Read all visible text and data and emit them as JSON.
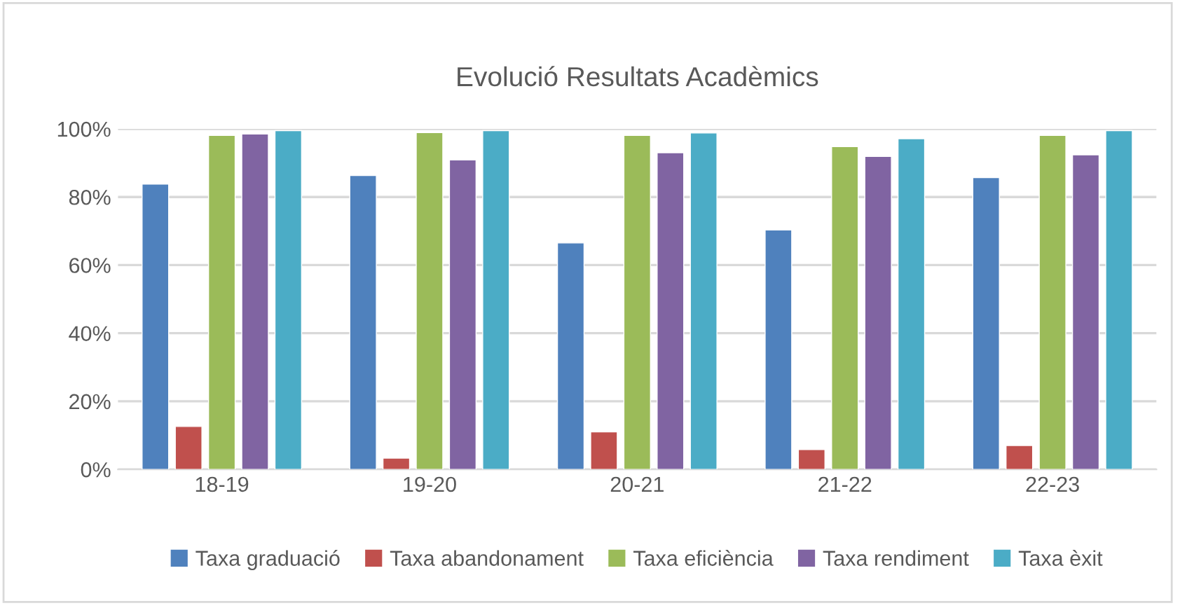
{
  "chart_data": {
    "type": "bar",
    "title": "Evolució Resultats Acadèmics",
    "categories": [
      "18-19",
      "19-20",
      "20-21",
      "21-22",
      "22-23"
    ],
    "series": [
      {
        "name": "Taxa graduació",
        "color": "#4f81bd",
        "values": [
          83.8,
          86.3,
          66.5,
          70.3,
          85.7
        ]
      },
      {
        "name": "Taxa abandonament",
        "color": "#c0504d",
        "values": [
          12.6,
          3.3,
          11.0,
          5.8,
          7.0
        ]
      },
      {
        "name": "Taxa eficiència",
        "color": "#9bbb59",
        "values": [
          98.1,
          98.9,
          98.1,
          94.8,
          98.1
        ]
      },
      {
        "name": "Taxa rendiment",
        "color": "#8064a2",
        "values": [
          98.5,
          90.9,
          93.0,
          91.9,
          92.4
        ]
      },
      {
        "name": "Taxa èxit",
        "color": "#4bacc6",
        "values": [
          99.5,
          99.5,
          98.8,
          97.1,
          99.5
        ]
      }
    ],
    "ylim": [
      0,
      100
    ],
    "yticks": [
      {
        "value": 0,
        "label": "0%"
      },
      {
        "value": 20,
        "label": "20%"
      },
      {
        "value": 40,
        "label": "40%"
      },
      {
        "value": 60,
        "label": "60%"
      },
      {
        "value": 80,
        "label": "80%"
      },
      {
        "value": 100,
        "label": "100%"
      }
    ],
    "grid": "y",
    "legend": "bottom"
  }
}
